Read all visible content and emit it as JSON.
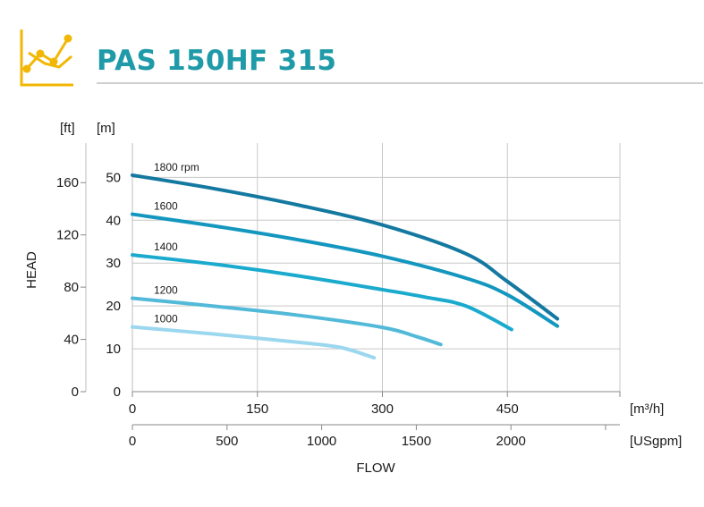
{
  "header": {
    "title": "PAS 150HF 315",
    "icon": "line-chart-icon",
    "accent_color": "#1f9aa8",
    "icon_color": "#f2b705"
  },
  "chart_data": {
    "type": "line",
    "title": "PAS 150HF 315",
    "xlabel": "FLOW",
    "ylabel": "HEAD",
    "x_unit_primary": "[m³/h]",
    "x_unit_secondary": "[USgpm]",
    "y_unit_primary": "[m]",
    "y_unit_secondary": "[ft]",
    "xlim": [
      0,
      585
    ],
    "ylim": [
      0,
      58
    ],
    "x_ticks": [
      "0",
      "150",
      "300",
      "450"
    ],
    "x_tick_values": [
      0,
      150,
      300,
      450
    ],
    "x2_ticks": [
      "0",
      "500",
      "1000",
      "1500",
      "2000"
    ],
    "x2_tick_values": [
      0,
      500,
      1000,
      1500,
      2000
    ],
    "y_ticks": [
      "0",
      "10",
      "20",
      "30",
      "40",
      "50"
    ],
    "y_tick_values": [
      0,
      10,
      20,
      30,
      40,
      50
    ],
    "y2_ticks": [
      "0",
      "40",
      "80",
      "120",
      "160"
    ],
    "y2_tick_values": [
      0,
      40,
      80,
      120,
      160
    ],
    "grid": true,
    "series": [
      {
        "name": "1800 rpm",
        "color": "#1479a0",
        "x": [
          0,
          100,
          200,
          300,
          400,
          450,
          510
        ],
        "y": [
          50.5,
          47.3,
          43.5,
          38.9,
          32.2,
          25.7,
          17.0
        ]
      },
      {
        "name": "1600",
        "color": "#1497bf",
        "x": [
          0,
          100,
          200,
          300,
          400,
          450,
          510
        ],
        "y": [
          41.4,
          38.6,
          35.4,
          31.6,
          26.5,
          22.6,
          15.3
        ]
      },
      {
        "name": "1400",
        "color": "#1aaace",
        "x": [
          0,
          100,
          200,
          300,
          350,
          400,
          455
        ],
        "y": [
          31.9,
          29.7,
          27.0,
          23.8,
          22.1,
          20.0,
          14.5
        ]
      },
      {
        "name": "1200",
        "color": "#52bad8",
        "x": [
          0,
          100,
          200,
          300,
          340,
          370
        ],
        "y": [
          21.8,
          19.9,
          17.8,
          15.0,
          12.9,
          11.0
        ]
      },
      {
        "name": "1000",
        "color": "#9bd7ee",
        "x": [
          0,
          100,
          200,
          250,
          290
        ],
        "y": [
          15.1,
          13.4,
          11.5,
          10.3,
          7.9
        ]
      }
    ]
  }
}
